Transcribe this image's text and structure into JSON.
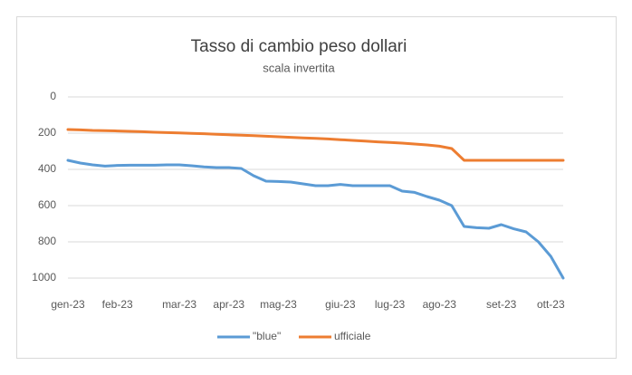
{
  "chart_data": {
    "type": "line",
    "title": "Tasso di cambio peso dollari",
    "subtitle": "scala invertita",
    "categories": [
      "gen-23",
      null,
      null,
      null,
      "feb-23",
      null,
      null,
      null,
      null,
      "mar-23",
      null,
      null,
      null,
      "apr-23",
      null,
      null,
      null,
      "mag-23",
      null,
      null,
      null,
      null,
      "giu-23",
      null,
      null,
      null,
      "lug-23",
      null,
      null,
      null,
      "ago-23",
      null,
      null,
      null,
      null,
      "set-23",
      null,
      null,
      null,
      "ott-23",
      null
    ],
    "series": [
      {
        "name": "\"blue\"",
        "color": "#5b9bd5",
        "values": [
          350,
          365,
          375,
          382,
          378,
          377,
          377,
          377,
          375,
          375,
          380,
          386,
          390,
          390,
          395,
          435,
          465,
          467,
          470,
          480,
          490,
          490,
          483,
          490,
          490,
          490,
          490,
          520,
          527,
          550,
          570,
          600,
          715,
          722,
          725,
          705,
          728,
          745,
          800,
          880,
          1000
        ]
      },
      {
        "name": "ufficiale",
        "color": "#ed7d31",
        "values": [
          180,
          182,
          185,
          186,
          188,
          190,
          192,
          195,
          197,
          199,
          201,
          203,
          206,
          209,
          211,
          214,
          217,
          220,
          223,
          226,
          229,
          232,
          236,
          240,
          244,
          248,
          251,
          255,
          260,
          265,
          272,
          285,
          350,
          350,
          350,
          350,
          350,
          350,
          350,
          350,
          350
        ]
      }
    ],
    "ylim": [
      0,
      1000
    ],
    "yticks": [
      0,
      200,
      400,
      600,
      800,
      1000
    ],
    "invert_y": true,
    "grid": true,
    "legend": "bottom"
  }
}
